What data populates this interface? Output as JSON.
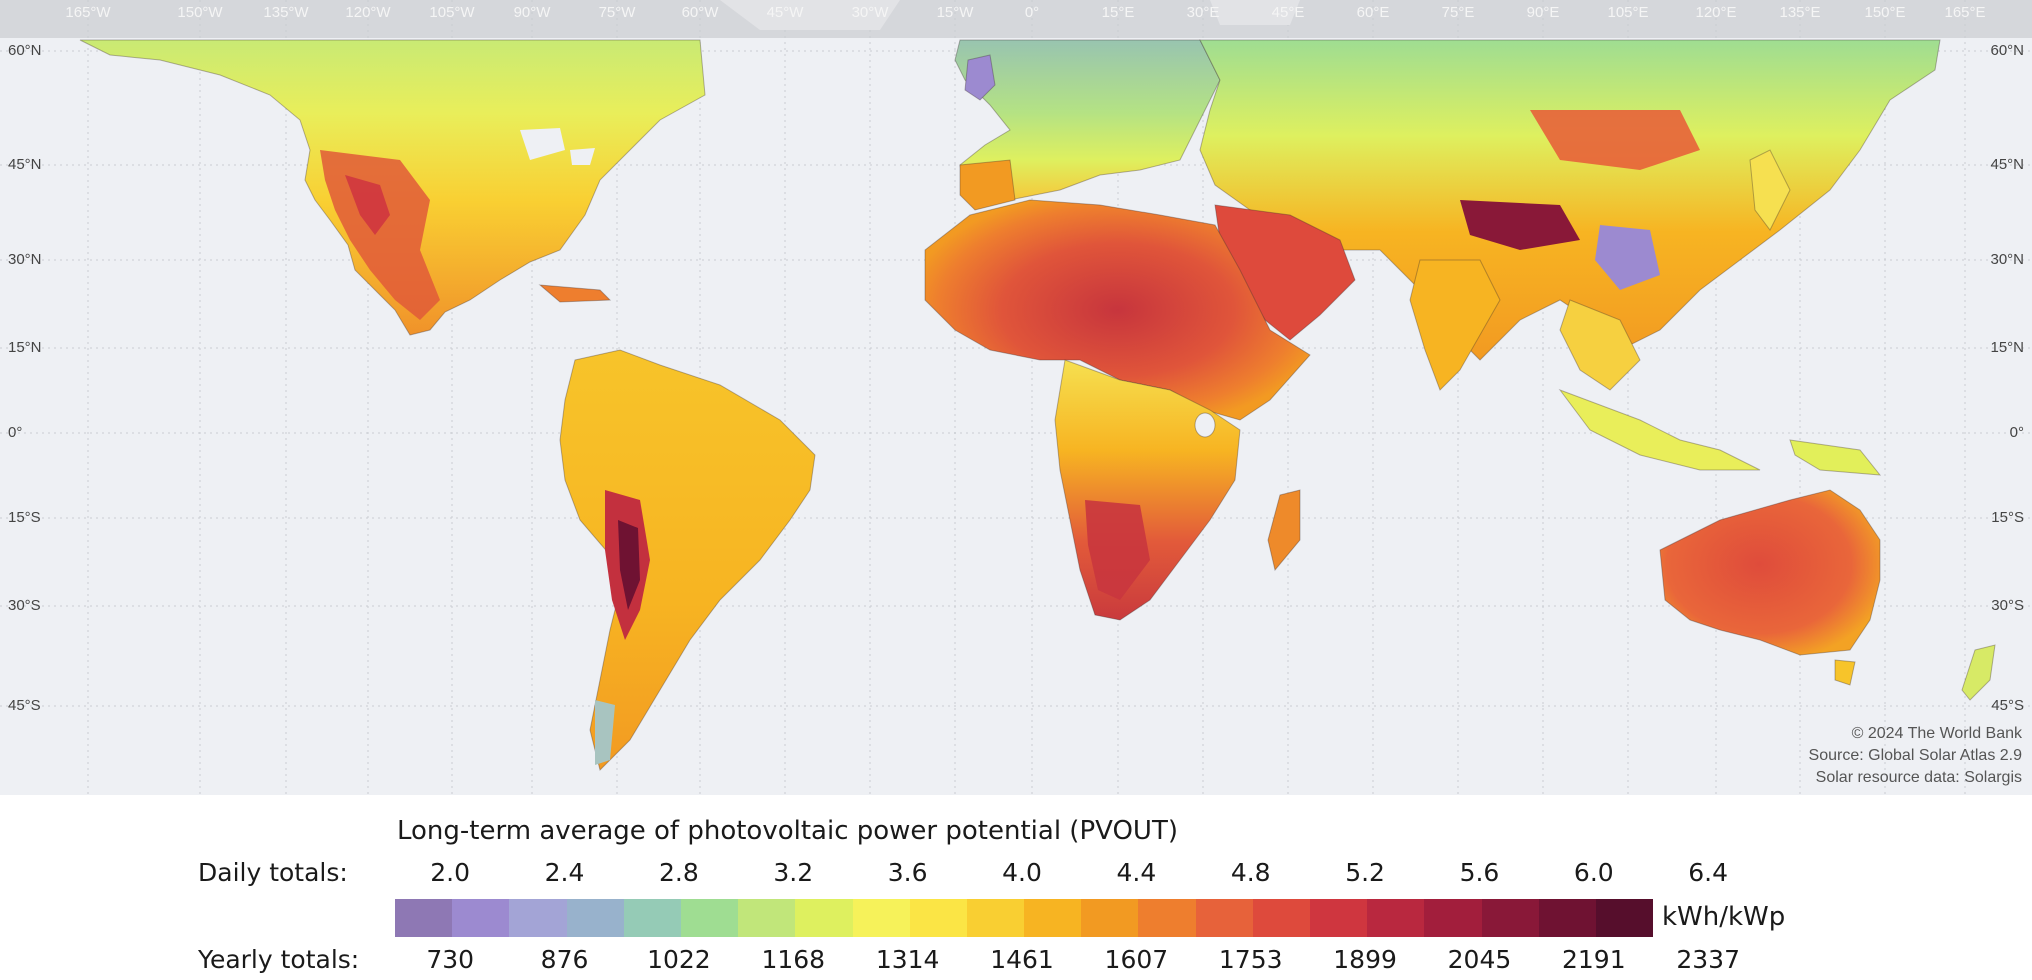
{
  "map": {
    "longitude_labels": [
      "165°W",
      "150°W",
      "135°W",
      "120°W",
      "105°W",
      "90°W",
      "75°W",
      "60°W",
      "45°W",
      "30°W",
      "15°W",
      "0°",
      "15°E",
      "30°E",
      "45°E",
      "60°E",
      "75°E",
      "90°E",
      "105°E",
      "120°E",
      "135°E",
      "150°E",
      "165°E"
    ],
    "latitude_labels": [
      "60°N",
      "45°N",
      "30°N",
      "15°N",
      "0°",
      "15°S",
      "30°S",
      "45°S"
    ],
    "credits": [
      "© 2024 The World Bank",
      "Source: Global Solar Atlas 2.9",
      "Solar resource data: Solargis"
    ]
  },
  "legend": {
    "title": "Long-term average of photovoltaic power potential (PVOUT)",
    "daily_label": "Daily totals:",
    "yearly_label": "Yearly totals:",
    "unit": "kWh/kWp",
    "daily_ticks": [
      "2.0",
      "2.4",
      "2.8",
      "3.2",
      "3.6",
      "4.0",
      "4.4",
      "4.8",
      "5.2",
      "5.6",
      "6.0",
      "6.4"
    ],
    "yearly_ticks": [
      "730",
      "876",
      "1022",
      "1168",
      "1314",
      "1461",
      "1607",
      "1753",
      "1899",
      "2045",
      "2191",
      "2337"
    ],
    "colors": [
      "#8e78b4",
      "#9c8ad0",
      "#a3a4d6",
      "#98b2cc",
      "#95cbb6",
      "#9fdd92",
      "#c1e67a",
      "#def05f",
      "#f6f25a",
      "#fbe545",
      "#f9cf32",
      "#f7b422",
      "#f29a22",
      "#ee7e2e",
      "#e7623a",
      "#de4a3c",
      "#cf363f",
      "#b9283f",
      "#a21e3c",
      "#891838",
      "#6f1232",
      "#560e2c"
    ]
  }
}
